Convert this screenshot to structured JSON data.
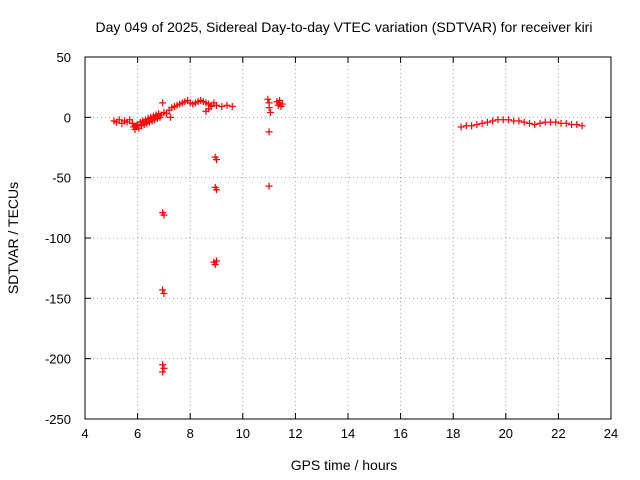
{
  "chart_data": {
    "type": "scatter",
    "title": "Day 049 of 2025, Sidereal Day-to-day VTEC variation (SDTVAR) for receiver kiri",
    "xlabel": "GPS time / hours",
    "ylabel": "SDTVAR / TECUs",
    "xlim": [
      4,
      24
    ],
    "ylim": [
      -250,
      50
    ],
    "xticks": [
      4,
      6,
      8,
      10,
      12,
      14,
      16,
      18,
      20,
      22,
      24
    ],
    "yticks": [
      50,
      0,
      -50,
      -100,
      -150,
      -200,
      -250
    ],
    "grid": true,
    "marker": "plus",
    "color": "#ff0000",
    "series": [
      {
        "name": "SDTVAR",
        "points": [
          [
            5.1,
            -3
          ],
          [
            5.2,
            -4
          ],
          [
            5.3,
            -2
          ],
          [
            5.4,
            -5
          ],
          [
            5.5,
            -3
          ],
          [
            5.6,
            -4
          ],
          [
            5.7,
            -2
          ],
          [
            5.8,
            -5
          ],
          [
            5.85,
            -8
          ],
          [
            5.9,
            -10
          ],
          [
            5.95,
            -7
          ],
          [
            6.0,
            -6
          ],
          [
            6.05,
            -9
          ],
          [
            6.1,
            -4
          ],
          [
            6.15,
            -7
          ],
          [
            6.2,
            -3
          ],
          [
            6.25,
            -6
          ],
          [
            6.3,
            -2
          ],
          [
            6.35,
            -5
          ],
          [
            6.4,
            -1
          ],
          [
            6.45,
            -4
          ],
          [
            6.5,
            0
          ],
          [
            6.55,
            -3
          ],
          [
            6.6,
            1
          ],
          [
            6.65,
            -2
          ],
          [
            6.7,
            2
          ],
          [
            6.75,
            -1
          ],
          [
            6.8,
            3
          ],
          [
            6.85,
            0
          ],
          [
            6.9,
            2
          ],
          [
            6.95,
            12
          ],
          [
            7.0,
            4
          ],
          [
            7.1,
            3
          ],
          [
            7.2,
            6
          ],
          [
            7.25,
            0
          ],
          [
            7.3,
            8
          ],
          [
            7.4,
            9
          ],
          [
            7.5,
            10
          ],
          [
            7.6,
            11
          ],
          [
            7.7,
            12
          ],
          [
            7.8,
            13
          ],
          [
            7.9,
            14
          ],
          [
            8.0,
            12
          ],
          [
            8.1,
            11
          ],
          [
            8.2,
            12
          ],
          [
            8.3,
            13
          ],
          [
            8.4,
            14
          ],
          [
            8.5,
            13
          ],
          [
            8.6,
            12
          ],
          [
            8.7,
            11
          ],
          [
            8.8,
            10
          ],
          [
            8.9,
            12
          ],
          [
            8.6,
            5
          ],
          [
            8.7,
            7
          ],
          [
            8.8,
            9
          ],
          [
            9.0,
            10
          ],
          [
            9.2,
            9
          ],
          [
            9.4,
            10
          ],
          [
            9.6,
            9
          ],
          [
            10.95,
            15
          ],
          [
            11.0,
            12
          ],
          [
            11.0,
            8
          ],
          [
            11.05,
            4
          ],
          [
            11.0,
            -12
          ],
          [
            11.0,
            -57
          ],
          [
            11.3,
            13
          ],
          [
            11.35,
            10
          ],
          [
            11.4,
            12
          ],
          [
            11.45,
            9
          ],
          [
            11.5,
            11
          ],
          [
            11.4,
            14
          ],
          [
            6.95,
            -79
          ],
          [
            7.0,
            -81
          ],
          [
            6.95,
            -143
          ],
          [
            7.0,
            -146
          ],
          [
            6.95,
            -205
          ],
          [
            7.0,
            -208
          ],
          [
            6.95,
            -211
          ],
          [
            8.95,
            -33
          ],
          [
            9.0,
            -35
          ],
          [
            8.95,
            -58
          ],
          [
            9.0,
            -60
          ],
          [
            8.9,
            -120
          ],
          [
            8.95,
            -122
          ],
          [
            9.0,
            -119
          ],
          [
            18.3,
            -8
          ],
          [
            18.5,
            -7
          ],
          [
            18.7,
            -7
          ],
          [
            18.9,
            -6
          ],
          [
            19.1,
            -5
          ],
          [
            19.3,
            -4
          ],
          [
            19.5,
            -3
          ],
          [
            19.7,
            -2
          ],
          [
            19.9,
            -2
          ],
          [
            20.1,
            -2
          ],
          [
            20.3,
            -3
          ],
          [
            20.5,
            -3
          ],
          [
            20.7,
            -4
          ],
          [
            20.9,
            -5
          ],
          [
            21.1,
            -6
          ],
          [
            21.3,
            -5
          ],
          [
            21.5,
            -4
          ],
          [
            21.7,
            -4
          ],
          [
            21.9,
            -4
          ],
          [
            22.1,
            -5
          ],
          [
            22.3,
            -5
          ],
          [
            22.5,
            -6
          ],
          [
            22.7,
            -6
          ],
          [
            22.9,
            -7
          ]
        ]
      }
    ]
  }
}
